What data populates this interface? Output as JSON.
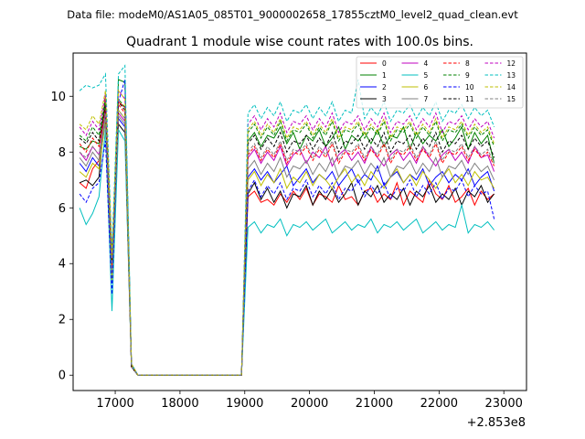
{
  "figure": {
    "suptitle": "Data file: modeM0/AS1A05_085T01_9000002658_17855cztM0_level2_quad_clean.evt",
    "offset_label": "+2.853e8"
  },
  "chart_data": {
    "type": "line",
    "title": "Quadrant 1 module wise count rates with 100.0s bins.",
    "xlabel": "",
    "ylabel": "",
    "x_offset": 285300000,
    "xlim": [
      16350,
      23350
    ],
    "ylim": [
      -0.55,
      11.55
    ],
    "xticks": [
      17000,
      18000,
      19000,
      20000,
      21000,
      22000,
      23000
    ],
    "yticks": [
      0,
      2,
      4,
      6,
      8,
      10
    ],
    "legend": {
      "placement": "top-right",
      "columns": 4,
      "entries": [
        "0",
        "1",
        "2",
        "3",
        "4",
        "5",
        "6",
        "7",
        "8",
        "9",
        "10",
        "11",
        "12",
        "13",
        "14",
        "15"
      ]
    },
    "x_relative": {
      "start": 16450,
      "step": 100,
      "count": 67,
      "gap_from": 17450,
      "gap_to": 19150
    },
    "series": [
      {
        "name": "0",
        "color": "#ff0000",
        "dash": "solid",
        "pattern": [
          6.9,
          6.7,
          7.4,
          7.7,
          10,
          4.2,
          9.8,
          9.6,
          0.4,
          0,
          6.4,
          6.6,
          6.2,
          6.3,
          6.1,
          6.5,
          6.2,
          6.6,
          6.3,
          6.7,
          6.1,
          6.5,
          6.4,
          6.2,
          6.8,
          6.3,
          6.4,
          6.1,
          6.6,
          6.7,
          6.2,
          6.5,
          6.3,
          6.9,
          6.1,
          6.6,
          6.4,
          6.2,
          7,
          6.5,
          6.3,
          6.8,
          6.2,
          6.4,
          6.7,
          6.1,
          6.6,
          6.3,
          6.5
        ]
      },
      {
        "name": "1",
        "color": "#008000",
        "dash": "solid",
        "pattern": [
          8.2,
          8.1,
          8.4,
          8.3,
          9.8,
          3.9,
          10.6,
          10.5,
          0.4,
          0,
          8.4,
          8.7,
          8.2,
          8.6,
          8.5,
          8.9,
          8.3,
          8.7,
          8.1,
          8.6,
          8.4,
          8.8,
          8.2,
          8.5,
          8.9,
          8.1,
          8.6,
          8.4,
          8.7,
          8.3,
          8.8,
          8.2,
          8.6,
          8.5,
          8.9,
          8.1,
          8.7,
          8.3,
          8.6,
          8.4,
          8.8,
          8.2,
          8.5,
          8.9,
          8.1,
          8.7,
          8.3,
          8.6,
          7.6
        ]
      },
      {
        "name": "2",
        "color": "#0000ff",
        "dash": "solid",
        "pattern": [
          7.6,
          7.3,
          7.8,
          7.5,
          9.1,
          3.6,
          9.2,
          8.9,
          0.3,
          0,
          7.1,
          7.4,
          7,
          7.3,
          6.9,
          7.2,
          7.5,
          6.8,
          7.1,
          7.4,
          6.9,
          7.2,
          7,
          7.3,
          6.8,
          7.1,
          7.4,
          6.9,
          7.2,
          7,
          7.5,
          6.8,
          7.1,
          7.3,
          6.9,
          7.2,
          7,
          7.4,
          6.8,
          7.1,
          7.3,
          6.9,
          7.2,
          7,
          7.4,
          6.8,
          7.1,
          7.3,
          6.6
        ]
      },
      {
        "name": "3",
        "color": "#000000",
        "dash": "solid",
        "pattern": [
          6.9,
          7,
          6.8,
          7.1,
          9.6,
          4,
          9,
          8.7,
          0.3,
          0,
          6.5,
          6.9,
          6.3,
          6.7,
          6.2,
          6.6,
          6,
          6.5,
          6.4,
          6.8,
          6.1,
          6.6,
          6.3,
          6.7,
          6.2,
          6.5,
          6.9,
          6.1,
          6.6,
          6.4,
          6.8,
          6.2,
          6.5,
          6.3,
          6.7,
          6.1,
          6.6,
          6.4,
          6.8,
          6.2,
          6.5,
          6.3,
          6.7,
          6.1,
          6.6,
          6.4,
          6.8,
          6.2,
          6.5
        ]
      },
      {
        "name": "4",
        "color": "#bf00bf",
        "dash": "solid",
        "pattern": [
          8,
          7.7,
          8.2,
          7.9,
          9.5,
          3.8,
          9.4,
          9.1,
          0.3,
          0,
          7.8,
          8.1,
          7.6,
          8,
          7.7,
          8.2,
          7.5,
          7.9,
          8.1,
          7.6,
          8,
          7.8,
          8.2,
          7.5,
          7.9,
          8.1,
          7.7,
          8,
          7.6,
          8.2,
          7.8,
          7.5,
          7.9,
          8.1,
          7.7,
          8,
          7.6,
          8.2,
          7.8,
          7.5,
          7.9,
          8.1,
          7.7,
          8,
          7.6,
          8.2,
          7.8,
          7.9,
          7.3
        ]
      },
      {
        "name": "5",
        "color": "#00bfbf",
        "dash": "solid",
        "pattern": [
          6,
          5.4,
          5.8,
          6.4,
          8.8,
          2.3,
          8.8,
          8.4,
          0.3,
          0,
          5.3,
          5.5,
          5.1,
          5.4,
          5.3,
          5.6,
          5,
          5.4,
          5.3,
          5.5,
          5.2,
          5.4,
          5.6,
          5.1,
          5.3,
          5.5,
          5.2,
          5.4,
          5.3,
          5.6,
          5.1,
          5.4,
          5.3,
          5.5,
          5.2,
          5.4,
          5.6,
          5.1,
          5.3,
          5.5,
          5.2,
          5.4,
          5.3,
          6.1,
          5.1,
          5.4,
          5.3,
          5.5,
          5.2
        ]
      },
      {
        "name": "6",
        "color": "#bfbf00",
        "dash": "solid",
        "pattern": [
          7.3,
          7.1,
          7.6,
          7.4,
          9.2,
          3.4,
          9.5,
          9.2,
          0.3,
          0,
          7,
          7.3,
          6.8,
          7.2,
          6.9,
          7.4,
          6.7,
          7.1,
          6.9,
          7.3,
          6.8,
          7.2,
          7,
          6.7,
          7.1,
          7.4,
          6.9,
          7.2,
          6.8,
          7.3,
          7,
          6.7,
          7.1,
          7.4,
          6.9,
          7.2,
          6.8,
          7.3,
          7,
          6.7,
          7.1,
          7.4,
          6.9,
          7.2,
          6.8,
          7.3,
          7,
          7.1,
          6.7
        ]
      },
      {
        "name": "7",
        "color": "#808080",
        "dash": "solid",
        "pattern": [
          7.8,
          7.5,
          8,
          7.7,
          9.3,
          3.7,
          9.3,
          9,
          0.3,
          0,
          7.4,
          7.7,
          7.2,
          7.6,
          7.3,
          7.8,
          7.1,
          7.5,
          7.4,
          7.7,
          7.2,
          7.6,
          7.3,
          7.8,
          7.1,
          7.5,
          7.4,
          7.7,
          7.2,
          7.6,
          7.3,
          7.8,
          7.1,
          7.5,
          7.4,
          7.7,
          7.2,
          7.6,
          7.3,
          7.8,
          7.1,
          7.5,
          7.4,
          7.7,
          7.2,
          7.6,
          7.3,
          7.5,
          7
        ]
      },
      {
        "name": "8",
        "color": "#ff0000",
        "dash": "dashed",
        "pattern": [
          8.3,
          8,
          8.5,
          8.2,
          9.6,
          3.9,
          9.7,
          9.4,
          0.3,
          0,
          7.9,
          8.2,
          7.7,
          8.1,
          7.8,
          8.3,
          7.6,
          8,
          7.9,
          8.2,
          7.7,
          8.1,
          7.8,
          8.3,
          7.6,
          8,
          7.9,
          8.2,
          7.7,
          8.1,
          7.8,
          8.3,
          7.6,
          8,
          7.9,
          8.2,
          7.7,
          8.1,
          7.8,
          8.3,
          7.6,
          8,
          7.9,
          8.2,
          7.7,
          8.1,
          7.8,
          8,
          7.5
        ]
      },
      {
        "name": "9",
        "color": "#008000",
        "dash": "dashed",
        "pattern": [
          8.6,
          8.4,
          8.9,
          8.6,
          9.9,
          4.1,
          9.9,
          9.6,
          0.4,
          0,
          8.7,
          9,
          8.5,
          8.9,
          8.6,
          9.1,
          8.4,
          8.8,
          8.7,
          9,
          8.5,
          8.9,
          8.6,
          9.1,
          8.4,
          8.8,
          8.7,
          9,
          8.5,
          8.9,
          8.6,
          9.1,
          8.4,
          8.8,
          8.7,
          9,
          8.5,
          8.9,
          8.6,
          9.1,
          8.4,
          8.8,
          8.7,
          9,
          8.5,
          8.9,
          8.6,
          8.8,
          8.2
        ]
      },
      {
        "name": "10",
        "color": "#0000ff",
        "dash": "dashed",
        "pattern": [
          6.5,
          6.2,
          6.7,
          6.9,
          8.4,
          2.9,
          9.8,
          10.6,
          0.3,
          0,
          6.6,
          7,
          6.4,
          6.8,
          6.5,
          6.9,
          6.3,
          6.7,
          6.6,
          7,
          6.4,
          6.8,
          6.5,
          6.9,
          6.3,
          6.7,
          6.6,
          7,
          6.4,
          6.8,
          6.5,
          6.9,
          6.3,
          6.7,
          6.6,
          7,
          6.4,
          6.8,
          6.5,
          6.9,
          6.3,
          6.7,
          6.6,
          7,
          6.4,
          6.8,
          6.5,
          6.6,
          5.6
        ]
      },
      {
        "name": "11",
        "color": "#000000",
        "dash": "dashed",
        "pattern": [
          8.5,
          8.3,
          8.7,
          8.4,
          9.7,
          4,
          9.8,
          9.5,
          0.3,
          0,
          8.3,
          8.6,
          8.1,
          8.5,
          8.2,
          8.7,
          8,
          8.4,
          8.3,
          8.6,
          8.1,
          8.5,
          8.2,
          8.7,
          8,
          8.4,
          8.3,
          8.6,
          8.1,
          8.5,
          8.2,
          8.7,
          8,
          8.4,
          8.3,
          8.6,
          8.1,
          8.5,
          8.2,
          8.7,
          8,
          8.4,
          8.3,
          8.6,
          8.1,
          8.5,
          8.2,
          8.4,
          7.8
        ]
      },
      {
        "name": "12",
        "color": "#bf00bf",
        "dash": "dashed",
        "pattern": [
          8.9,
          8.6,
          9.1,
          8.8,
          10.1,
          4.2,
          10.2,
          9.9,
          0.4,
          0,
          9,
          9.3,
          8.8,
          9.2,
          8.9,
          9.4,
          8.7,
          9.1,
          9,
          9.3,
          8.8,
          9.2,
          8.9,
          9.4,
          8.7,
          9.1,
          9,
          9.3,
          8.8,
          9.2,
          8.9,
          9.4,
          8.7,
          9.1,
          9,
          9.3,
          8.8,
          9.2,
          8.9,
          9.4,
          8.7,
          9.1,
          9,
          9.3,
          8.8,
          9.2,
          8.9,
          9.1,
          8.5
        ]
      },
      {
        "name": "13",
        "color": "#00bfbf",
        "dash": "dashed",
        "pattern": [
          10.2,
          10.4,
          10.3,
          10.4,
          10.8,
          4.4,
          10.8,
          11.1,
          0.4,
          0,
          9.4,
          9.7,
          9.2,
          9.6,
          9.3,
          9.8,
          9.1,
          9.5,
          9.4,
          9.7,
          9.2,
          9.6,
          9.3,
          9.8,
          9.1,
          9.5,
          9.4,
          10.6,
          9.2,
          9.6,
          9.3,
          9.8,
          9.1,
          9.5,
          9.4,
          9.7,
          9.2,
          9.6,
          9.3,
          9.8,
          9.1,
          9.5,
          9.4,
          9.7,
          9.2,
          9.6,
          9.3,
          9.5,
          8.9
        ]
      },
      {
        "name": "14",
        "color": "#bfbf00",
        "dash": "dashed",
        "pattern": [
          9,
          8.8,
          9.3,
          9,
          10.2,
          4.3,
          10.2,
          9.9,
          0.4,
          0,
          8.8,
          9.1,
          8.6,
          9,
          8.7,
          9.2,
          8.5,
          8.9,
          8.8,
          9.1,
          8.6,
          9,
          8.7,
          9.2,
          8.5,
          8.9,
          8.8,
          9.1,
          8.6,
          9,
          8.7,
          9.2,
          8.5,
          8.9,
          8.8,
          9.1,
          8.6,
          9,
          8.7,
          9.2,
          8.5,
          8.9,
          8.8,
          9.1,
          8.6,
          9,
          8.7,
          8.9,
          8.3
        ]
      },
      {
        "name": "15",
        "color": "#808080",
        "dash": "dashed",
        "pattern": [
          8,
          7.8,
          8.2,
          7.9,
          9.4,
          3.8,
          9.5,
          9.2,
          0.3,
          0,
          8,
          8.3,
          7.8,
          8.2,
          7.9,
          8.4,
          7.7,
          8.1,
          8,
          8.3,
          7.8,
          8.2,
          7.9,
          8.4,
          7.7,
          8.1,
          8,
          8.3,
          7.8,
          8.2,
          7.9,
          8.4,
          7.7,
          8.1,
          8,
          8.3,
          7.8,
          8.2,
          7.9,
          8.4,
          7.7,
          8.1,
          8,
          8.3,
          7.8,
          8.2,
          7.9,
          8.1,
          7.6
        ]
      }
    ]
  }
}
